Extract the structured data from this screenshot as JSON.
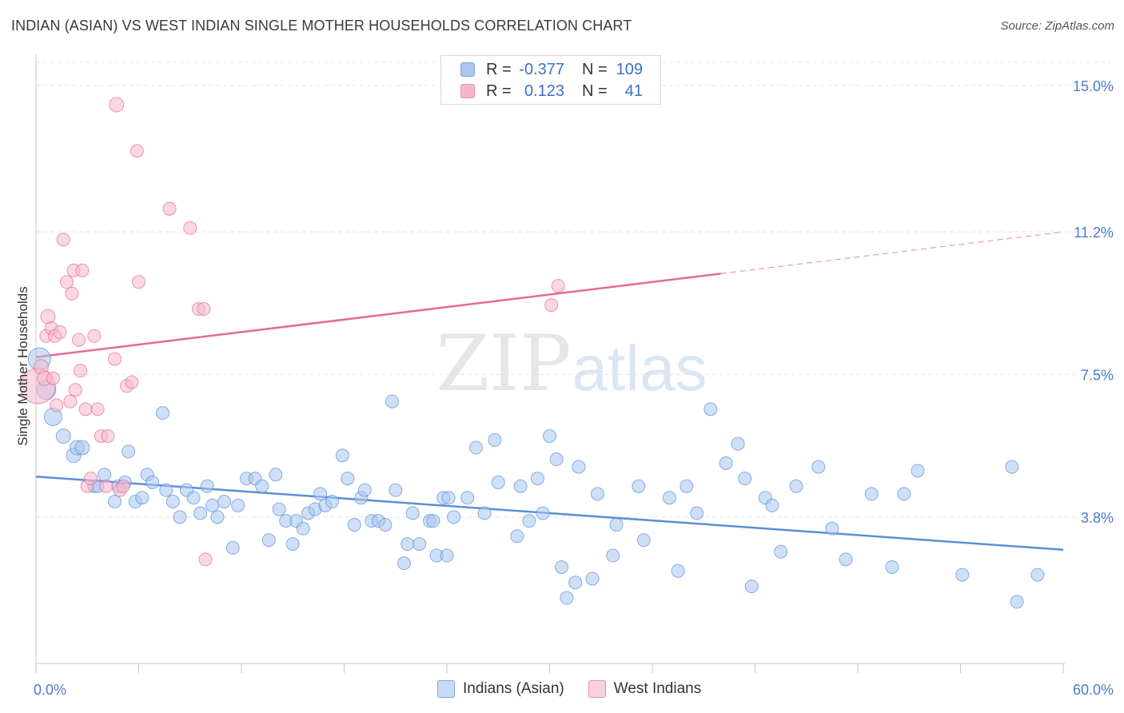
{
  "title": "INDIAN (ASIAN) VS WEST INDIAN SINGLE MOTHER HOUSEHOLDS CORRELATION CHART",
  "source": "Source: ZipAtlas.com",
  "watermark": {
    "zip": "ZIP",
    "atlas": "atlas"
  },
  "legend": {
    "rows": [
      {
        "r_label": "R =",
        "r_value": "-0.377",
        "n_label": "N =",
        "n_value": "109",
        "color": "#a8c6ee"
      },
      {
        "r_label": "R =",
        "r_value": "0.123",
        "n_label": "N =",
        "n_value": "41",
        "color": "#f5b8cb"
      }
    ]
  },
  "bottom_legend": [
    {
      "label": "Indians (Asian)",
      "color": "#a8c6ee"
    },
    {
      "label": "West Indians",
      "color": "#f5b8cb"
    }
  ],
  "chart_data": {
    "type": "scatter",
    "title": "INDIAN (ASIAN) VS WEST INDIAN SINGLE MOTHER HOUSEHOLDS CORRELATION CHART",
    "xlabel": "",
    "ylabel": "Single Mother Households",
    "xlim": [
      0,
      60
    ],
    "ylim": [
      0,
      15.6
    ],
    "x_tick_labels": [
      "0.0%",
      "60.0%"
    ],
    "y_ticks": [
      3.8,
      7.5,
      11.2,
      15.0
    ],
    "y_tick_labels": [
      "3.8%",
      "7.5%",
      "11.2%",
      "15.0%"
    ],
    "grid": true,
    "legend_position": "top-center",
    "series": [
      {
        "name": "Indians (Asian)",
        "color": "#5b8fd6",
        "fill": "#a8c6ee",
        "trend": {
          "x": [
            0,
            60
          ],
          "y": [
            4.85,
            2.95
          ],
          "dashed_from": null
        },
        "points": [
          [
            0.2,
            7.9,
            14
          ],
          [
            0.6,
            7.1,
            12
          ],
          [
            1.0,
            6.4,
            11
          ],
          [
            1.6,
            5.9,
            9
          ],
          [
            2.2,
            5.4,
            9
          ],
          [
            2.4,
            5.6,
            9
          ],
          [
            2.7,
            5.6,
            9
          ],
          [
            3.4,
            4.6,
            8
          ],
          [
            3.6,
            4.6,
            8
          ],
          [
            4.0,
            4.9,
            8
          ],
          [
            4.6,
            4.2,
            8
          ],
          [
            4.8,
            4.6,
            8
          ],
          [
            5.2,
            4.7,
            8
          ],
          [
            5.4,
            5.5,
            8
          ],
          [
            5.8,
            4.2,
            8
          ],
          [
            6.2,
            4.3,
            8
          ],
          [
            6.5,
            4.9,
            8
          ],
          [
            6.8,
            4.7,
            8
          ],
          [
            7.4,
            6.5,
            8
          ],
          [
            7.6,
            4.5,
            8
          ],
          [
            8.0,
            4.2,
            8
          ],
          [
            8.4,
            3.8,
            8
          ],
          [
            8.8,
            4.5,
            8
          ],
          [
            9.2,
            4.3,
            8
          ],
          [
            9.6,
            3.9,
            8
          ],
          [
            10.0,
            4.6,
            8
          ],
          [
            10.3,
            4.1,
            8
          ],
          [
            10.6,
            3.8,
            8
          ],
          [
            11.0,
            4.2,
            8
          ],
          [
            11.5,
            3.0,
            8
          ],
          [
            11.8,
            4.1,
            8
          ],
          [
            12.3,
            4.8,
            8
          ],
          [
            12.8,
            4.8,
            8
          ],
          [
            13.2,
            4.6,
            8
          ],
          [
            13.6,
            3.2,
            8
          ],
          [
            14.0,
            4.9,
            8
          ],
          [
            14.2,
            4.0,
            8
          ],
          [
            14.6,
            3.7,
            8
          ],
          [
            15.0,
            3.1,
            8
          ],
          [
            15.2,
            3.7,
            8
          ],
          [
            15.6,
            3.5,
            8
          ],
          [
            15.9,
            3.9,
            8
          ],
          [
            16.3,
            4.0,
            8
          ],
          [
            16.6,
            4.4,
            8
          ],
          [
            16.9,
            4.1,
            8
          ],
          [
            17.3,
            4.2,
            8
          ],
          [
            17.9,
            5.4,
            8
          ],
          [
            18.2,
            4.8,
            8
          ],
          [
            18.6,
            3.6,
            8
          ],
          [
            19.0,
            4.3,
            8
          ],
          [
            19.2,
            4.5,
            8
          ],
          [
            19.6,
            3.7,
            8
          ],
          [
            20.0,
            3.7,
            8
          ],
          [
            20.4,
            3.6,
            8
          ],
          [
            20.8,
            6.8,
            8
          ],
          [
            21.0,
            4.5,
            8
          ],
          [
            21.5,
            2.6,
            8
          ],
          [
            21.7,
            3.1,
            8
          ],
          [
            22.0,
            3.9,
            8
          ],
          [
            22.4,
            3.1,
            8
          ],
          [
            23.0,
            3.7,
            8
          ],
          [
            23.2,
            3.7,
            8
          ],
          [
            23.4,
            2.8,
            8
          ],
          [
            23.8,
            4.3,
            8
          ],
          [
            24.0,
            2.8,
            8
          ],
          [
            24.1,
            4.3,
            8
          ],
          [
            24.4,
            3.8,
            8
          ],
          [
            25.2,
            4.3,
            8
          ],
          [
            25.7,
            5.6,
            8
          ],
          [
            26.2,
            3.9,
            8
          ],
          [
            26.8,
            5.8,
            8
          ],
          [
            27.0,
            4.7,
            8
          ],
          [
            28.1,
            3.3,
            8
          ],
          [
            28.3,
            4.6,
            8
          ],
          [
            28.8,
            3.7,
            8
          ],
          [
            29.3,
            4.8,
            8
          ],
          [
            29.6,
            3.9,
            8
          ],
          [
            30.0,
            5.9,
            8
          ],
          [
            30.4,
            5.3,
            8
          ],
          [
            30.7,
            2.5,
            8
          ],
          [
            31.0,
            1.7,
            8
          ],
          [
            31.5,
            2.1,
            8
          ],
          [
            31.7,
            5.1,
            8
          ],
          [
            32.5,
            2.2,
            8
          ],
          [
            32.8,
            4.4,
            8
          ],
          [
            33.7,
            2.8,
            8
          ],
          [
            33.9,
            3.6,
            8
          ],
          [
            35.2,
            4.6,
            8
          ],
          [
            35.5,
            3.2,
            8
          ],
          [
            37.0,
            4.3,
            8
          ],
          [
            37.5,
            2.4,
            8
          ],
          [
            38.0,
            4.6,
            8
          ],
          [
            38.6,
            3.9,
            8
          ],
          [
            39.4,
            6.6,
            8
          ],
          [
            40.3,
            5.2,
            8
          ],
          [
            41.0,
            5.7,
            8
          ],
          [
            41.4,
            4.8,
            8
          ],
          [
            41.8,
            2.0,
            8
          ],
          [
            42.6,
            4.3,
            8
          ],
          [
            43.0,
            4.1,
            8
          ],
          [
            43.5,
            2.9,
            8
          ],
          [
            44.4,
            4.6,
            8
          ],
          [
            45.7,
            5.1,
            8
          ],
          [
            46.5,
            3.5,
            8
          ],
          [
            47.3,
            2.7,
            8
          ],
          [
            48.8,
            4.4,
            8
          ],
          [
            50.0,
            2.5,
            8
          ],
          [
            50.7,
            4.4,
            8
          ],
          [
            51.5,
            5.0,
            8
          ],
          [
            54.1,
            2.3,
            8
          ],
          [
            57.0,
            5.1,
            8
          ],
          [
            57.3,
            1.6,
            8
          ],
          [
            58.5,
            2.3,
            8
          ]
        ]
      },
      {
        "name": "West Indians",
        "color": "#e36b95",
        "fill": "#f5b8cb",
        "trend": {
          "x": [
            0,
            60
          ],
          "y": [
            7.95,
            11.2
          ],
          "dashed_from": 40
        },
        "points": [
          [
            0.1,
            7.2,
            22
          ],
          [
            0.3,
            7.7,
            9
          ],
          [
            0.5,
            7.4,
            9
          ],
          [
            0.6,
            8.5,
            8
          ],
          [
            0.7,
            9.0,
            9
          ],
          [
            0.9,
            8.7,
            8
          ],
          [
            1.0,
            7.4,
            8
          ],
          [
            1.1,
            8.5,
            8
          ],
          [
            1.2,
            6.7,
            8
          ],
          [
            1.4,
            8.6,
            8
          ],
          [
            1.6,
            11.0,
            8
          ],
          [
            1.8,
            9.9,
            8
          ],
          [
            2.0,
            6.8,
            8
          ],
          [
            2.1,
            9.6,
            8
          ],
          [
            2.2,
            10.2,
            8
          ],
          [
            2.3,
            7.1,
            8
          ],
          [
            2.5,
            8.4,
            8
          ],
          [
            2.6,
            7.6,
            8
          ],
          [
            2.7,
            10.2,
            8
          ],
          [
            2.9,
            6.6,
            8
          ],
          [
            3.0,
            4.6,
            8
          ],
          [
            3.2,
            4.8,
            8
          ],
          [
            3.4,
            8.5,
            8
          ],
          [
            3.6,
            6.6,
            8
          ],
          [
            3.8,
            5.9,
            8
          ],
          [
            4.1,
            4.6,
            8
          ],
          [
            4.2,
            5.9,
            8
          ],
          [
            4.6,
            7.9,
            8
          ],
          [
            4.7,
            14.5,
            9
          ],
          [
            4.9,
            4.5,
            8
          ],
          [
            5.1,
            4.6,
            8
          ],
          [
            5.3,
            7.2,
            8
          ],
          [
            5.6,
            7.3,
            8
          ],
          [
            5.9,
            13.3,
            8
          ],
          [
            6.0,
            9.9,
            8
          ],
          [
            7.8,
            11.8,
            8
          ],
          [
            9.0,
            11.3,
            8
          ],
          [
            9.5,
            9.2,
            8
          ],
          [
            9.8,
            9.2,
            8
          ],
          [
            9.9,
            2.7,
            8
          ],
          [
            30.1,
            9.3,
            8
          ],
          [
            30.5,
            9.8,
            8
          ]
        ]
      }
    ]
  }
}
